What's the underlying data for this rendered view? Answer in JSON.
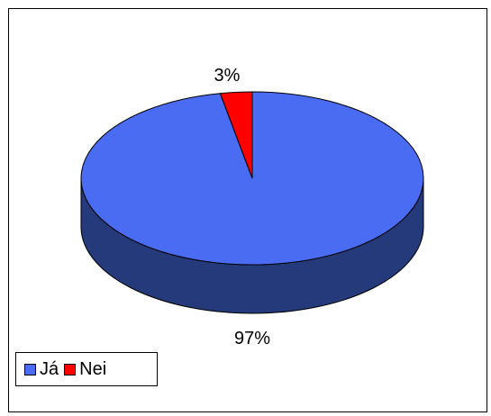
{
  "chart_data": {
    "type": "pie",
    "style": "3d",
    "categories": [
      "Já",
      "Nei"
    ],
    "values": [
      97,
      3
    ],
    "data_labels": [
      "97%",
      "3%"
    ],
    "colors": [
      "#4a6cf2",
      "#ff0000"
    ],
    "side_colors": [
      "#243a7a",
      "#8a0000"
    ],
    "legend": {
      "placement": "bottom-left",
      "items": [
        {
          "label": "Já",
          "color": "#4a6cf2"
        },
        {
          "label": "Nei",
          "color": "#ff0000"
        }
      ]
    },
    "title": ""
  }
}
